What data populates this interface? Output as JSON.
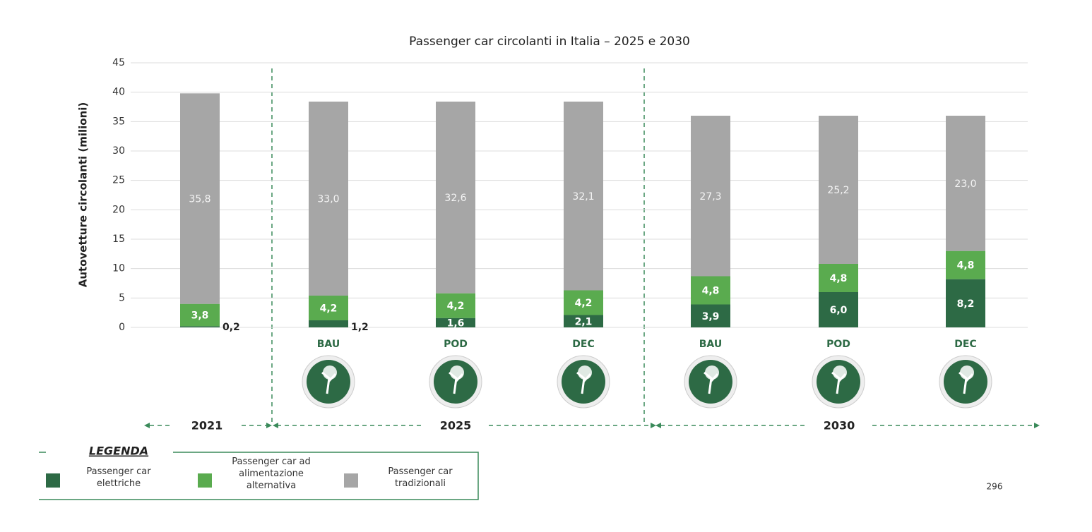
{
  "chart_data": {
    "type": "stacked_bar",
    "title": "Passenger car circolanti in Italia – 2025 e 2030",
    "y_label": "Autovetture circolanti (milioni)",
    "categories": [
      null,
      "BAU",
      "POD",
      "DEC",
      "BAU",
      "POD",
      "DEC"
    ],
    "groups": [
      "2021",
      "2025",
      "2030"
    ],
    "series": [
      {
        "name": "Passenger car elettriche",
        "color": "#2d6a45",
        "values": [
          0.2,
          1.2,
          1.6,
          2.1,
          3.9,
          6.0,
          8.2
        ],
        "value_labels": [
          "0,2",
          "1,2",
          "1,6",
          "2,1",
          "3,9",
          "6,0",
          "8,2"
        ]
      },
      {
        "name": "Passenger car ad alimentazione alternativa",
        "color": "#5aab4f",
        "values": [
          3.8,
          4.2,
          4.2,
          4.2,
          4.8,
          4.8,
          4.8
        ],
        "value_labels": [
          "3,8",
          "4,2",
          "4,2",
          "4,2",
          "4,8",
          "4,8",
          "4,8"
        ]
      },
      {
        "name": "Passenger car tradizionali",
        "color": "#a6a6a6",
        "values": [
          35.8,
          33.0,
          32.6,
          32.1,
          27.3,
          25.2,
          23.0
        ],
        "value_labels": [
          "35,8",
          "33,0",
          "32,6",
          "32,1",
          "27,3",
          "25,2",
          "23,0"
        ]
      }
    ],
    "ylim": [
      0,
      45
    ],
    "yticks": [
      0,
      5,
      10,
      15,
      20,
      25,
      30,
      35,
      40,
      45
    ],
    "grid": true,
    "legend_title": "LEGENDA",
    "page_number": "296"
  }
}
